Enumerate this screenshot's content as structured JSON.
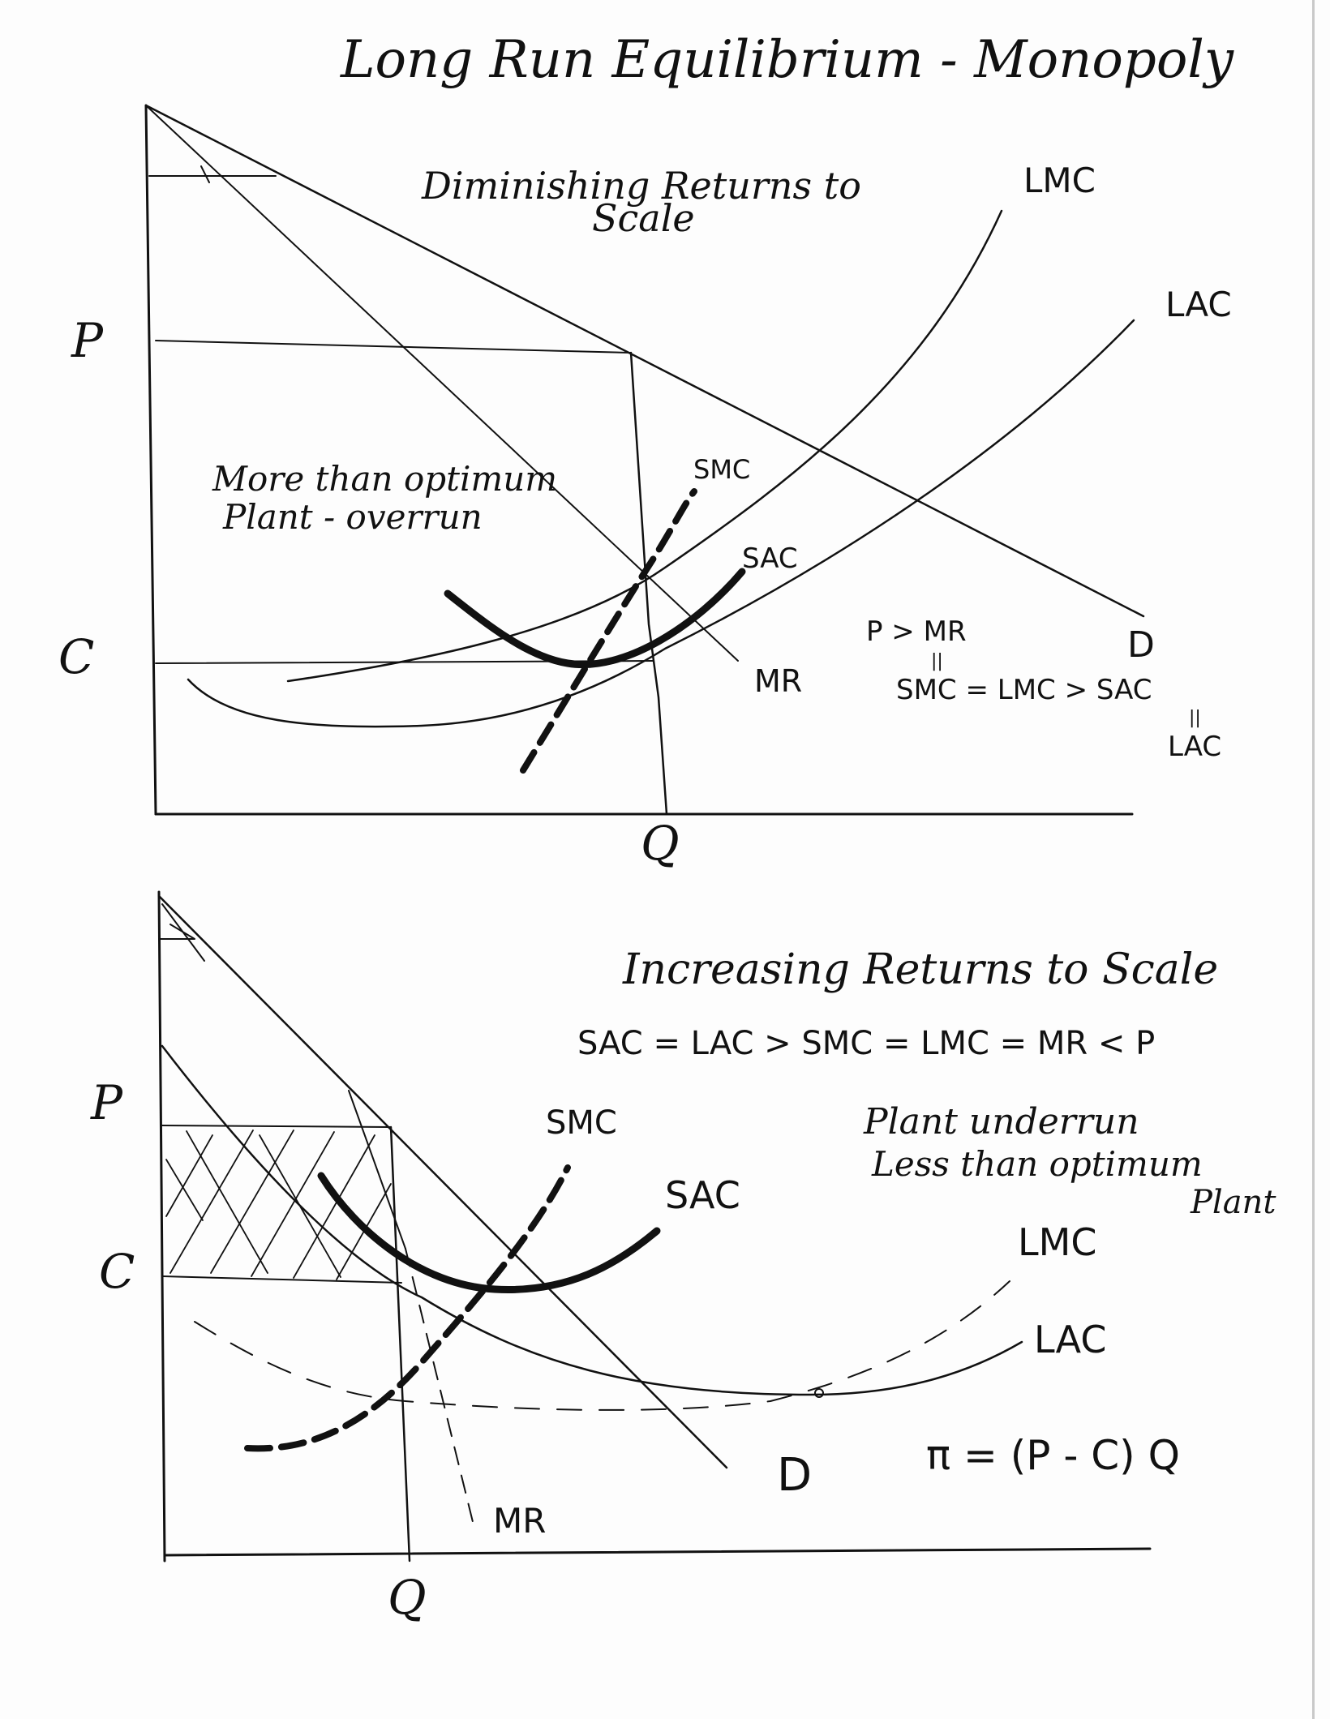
{
  "title": "Long Run Equilibrium - Monopoly",
  "top_diagram": {
    "heading_line1": "Diminishing Returns to",
    "heading_line2": "Scale",
    "axis_p": "P",
    "axis_c": "C",
    "axis_q": "Q",
    "label_lmc": "LMC",
    "label_lac": "LAC",
    "label_smc": "SMC",
    "label_sac": "SAC",
    "label_mr": "MR",
    "label_d": "D",
    "note_line1": "More than optimum",
    "note_line2": "Plant - overrun",
    "cond_line1": "P > MR",
    "cond_eq1": "||",
    "cond_line2": "SMC = LMC > SAC",
    "cond_eq2": "||",
    "cond_line3": "LAC"
  },
  "bottom_diagram": {
    "heading": "Increasing Returns to Scale",
    "condition": "SAC = LAC > SMC = LMC = MR < P",
    "axis_p": "P",
    "axis_c": "C",
    "axis_q": "Q",
    "label_smc": "SMC",
    "label_sac": "SAC",
    "label_lmc": "LMC",
    "label_lac": "LAC",
    "label_mr": "MR",
    "label_d": "D",
    "note_line1": "Plant underrun",
    "note_line2": "Less than optimum",
    "note_line3": "Plant",
    "profit": "π = (P - C) Q"
  }
}
